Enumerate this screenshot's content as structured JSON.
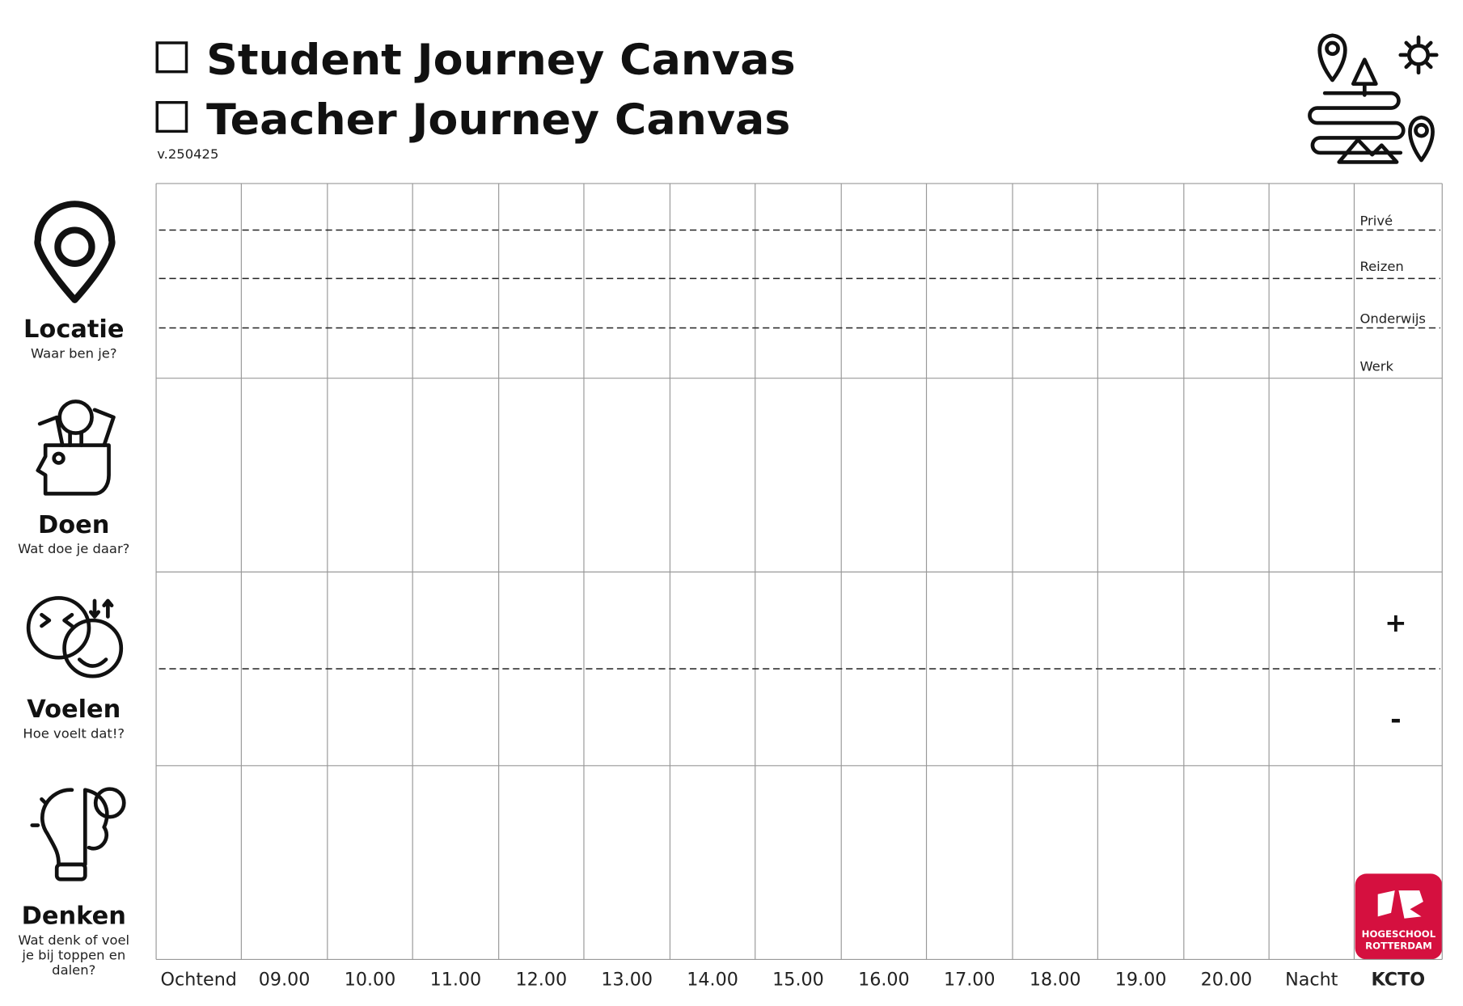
{
  "header": {
    "options": [
      "Student Journey Canvas",
      "Teacher Journey Canvas"
    ],
    "version": "v.250425"
  },
  "rows": [
    {
      "title": "Locatie",
      "subtitle_lines": [
        "Waar ben je?"
      ]
    },
    {
      "title": "Doen",
      "subtitle_lines": [
        "Wat doe je daar?"
      ]
    },
    {
      "title": "Voelen",
      "subtitle_lines": [
        "Hoe voelt dat!?"
      ]
    },
    {
      "title": "Denken",
      "subtitle_lines": [
        "Wat denk of voel",
        "je bij toppen en",
        "dalen?"
      ]
    }
  ],
  "columns": [
    "Ochtend",
    "09.00",
    "10.00",
    "11.00",
    "12.00",
    "13.00",
    "14.00",
    "15.00",
    "16.00",
    "17.00",
    "18.00",
    "19.00",
    "20.00",
    "Nacht",
    "KCTO"
  ],
  "location_lanes": [
    "Privé",
    "Reizen",
    "Onderwijs",
    "Werk"
  ],
  "feeling_scale": [
    "+",
    "-"
  ],
  "logo": [
    "HOGESCHOOL",
    "ROTTERDAM"
  ]
}
